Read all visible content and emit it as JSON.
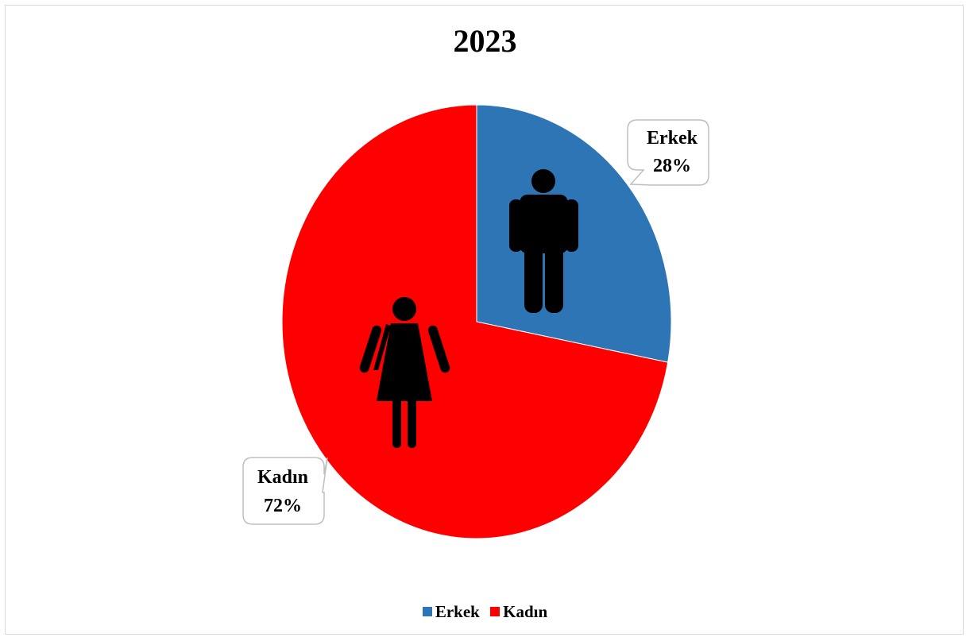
{
  "chart_data": {
    "type": "pie",
    "title": "2023",
    "categories": [
      "Erkek",
      "Kadın"
    ],
    "values": [
      28,
      72
    ],
    "unit": "%",
    "colors": [
      "#2e75b6",
      "#ff0000"
    ],
    "data_labels": [
      {
        "category": "Erkek",
        "value": "28%"
      },
      {
        "category": "Kadın",
        "value": "72%"
      }
    ],
    "slice_icons": [
      "man-icon",
      "woman-icon"
    ],
    "legend": {
      "position": "bottom",
      "entries": [
        "Erkek",
        "Kadın"
      ]
    }
  }
}
